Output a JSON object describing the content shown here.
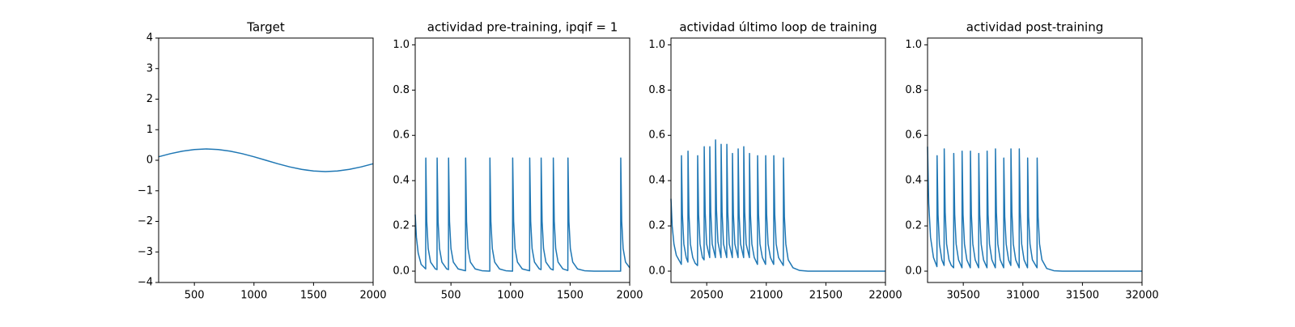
{
  "chart_data": [
    {
      "type": "line",
      "title": "Target",
      "color": "#1f77b4",
      "x": [
        200,
        300,
        400,
        500,
        600,
        700,
        800,
        900,
        1000,
        1100,
        1200,
        1300,
        1400,
        1500,
        1600,
        1700,
        1800,
        1900,
        2000
      ],
      "values": [
        0.114,
        0.217,
        0.299,
        0.352,
        0.37,
        0.352,
        0.299,
        0.217,
        0.114,
        0,
        -0.114,
        -0.217,
        -0.299,
        -0.352,
        -0.37,
        -0.352,
        -0.299,
        -0.217,
        -0.114
      ],
      "xlim": [
        200,
        2000
      ],
      "xticks": [
        500,
        1000,
        1500,
        2000
      ],
      "ylim": [
        -4,
        4
      ],
      "yticks": [
        {
          "value": -4,
          "label": "−4"
        },
        {
          "value": -3,
          "label": "−3"
        },
        {
          "value": -2,
          "label": "−2"
        },
        {
          "value": -1,
          "label": "−1"
        },
        0,
        1,
        2,
        3,
        4
      ]
    },
    {
      "type": "line",
      "title": "actividad pre-training, ipqif = 1",
      "color": "#1f77b4",
      "x": [
        200,
        210,
        225,
        250,
        288,
        289,
        297,
        309,
        329,
        369,
        383,
        384,
        392,
        404,
        424,
        464,
        479,
        480,
        488,
        500,
        520,
        560,
        622,
        623,
        631,
        643,
        663,
        703,
        760,
        826,
        827,
        835,
        847,
        867,
        907,
        960,
        1017,
        1018,
        1026,
        1038,
        1058,
        1098,
        1160,
        1161,
        1169,
        1181,
        1201,
        1241,
        1256,
        1257,
        1265,
        1277,
        1297,
        1337,
        1358,
        1359,
        1367,
        1379,
        1399,
        1439,
        1481,
        1482,
        1490,
        1502,
        1522,
        1562,
        1620,
        1700,
        1924,
        1925,
        1933,
        1945,
        1965,
        2000
      ],
      "values": [
        0.25,
        0.15,
        0.08,
        0.03,
        0.01,
        0.5,
        0.22,
        0.1,
        0.04,
        0.01,
        0.007,
        0.5,
        0.22,
        0.1,
        0.04,
        0.01,
        0.007,
        0.5,
        0.22,
        0.1,
        0.04,
        0.01,
        0.002,
        0.5,
        0.22,
        0.1,
        0.04,
        0.01,
        0.002,
        0,
        0.5,
        0.22,
        0.1,
        0.04,
        0.01,
        0.002,
        0,
        0.5,
        0.22,
        0.1,
        0.04,
        0.01,
        0.002,
        0.5,
        0.22,
        0.1,
        0.04,
        0.01,
        0.007,
        0.5,
        0.22,
        0.1,
        0.04,
        0.01,
        0.005,
        0.5,
        0.22,
        0.1,
        0.04,
        0.01,
        0.003,
        0.5,
        0.22,
        0.1,
        0.04,
        0.01,
        0.002,
        0,
        0,
        0.5,
        0.22,
        0.1,
        0.04,
        0.015
      ],
      "xlim": [
        200,
        2000
      ],
      "xticks": [
        500,
        1000,
        1500,
        2000
      ],
      "ylim": [
        -0.05,
        1.03
      ],
      "yticks": [
        {
          "value": 0,
          "label": "0.0"
        },
        0.2,
        0.4,
        0.6,
        0.8,
        {
          "value": 1,
          "label": "1.0"
        }
      ]
    },
    {
      "type": "line",
      "title": "actividad último loop de training",
      "color": "#1f77b4",
      "x": [
        20200,
        20210,
        20225,
        20245,
        20287,
        20288,
        20296,
        20308,
        20328,
        20342,
        20343,
        20351,
        20363,
        20383,
        20403,
        20423,
        20424,
        20432,
        20444,
        20464,
        20478,
        20479,
        20487,
        20499,
        20525,
        20526,
        20534,
        20546,
        20573,
        20574,
        20582,
        20594,
        20620,
        20621,
        20629,
        20641,
        20668,
        20669,
        20677,
        20689,
        20715,
        20716,
        20724,
        20736,
        20763,
        20764,
        20772,
        20784,
        20810,
        20811,
        20819,
        20831,
        20858,
        20859,
        20867,
        20879,
        20899,
        20926,
        20927,
        20935,
        20947,
        20967,
        20994,
        20995,
        21003,
        21015,
        21035,
        21062,
        21063,
        21071,
        21083,
        21103,
        21143,
        21144,
        21152,
        21164,
        21184,
        21224,
        21280,
        21350,
        22000
      ],
      "values": [
        0.32,
        0.2,
        0.12,
        0.07,
        0.03,
        0.51,
        0.25,
        0.12,
        0.06,
        0.04,
        0.53,
        0.25,
        0.12,
        0.06,
        0.035,
        0.025,
        0.51,
        0.25,
        0.12,
        0.06,
        0.05,
        0.55,
        0.26,
        0.12,
        0.06,
        0.55,
        0.26,
        0.12,
        0.06,
        0.58,
        0.27,
        0.13,
        0.06,
        0.56,
        0.26,
        0.12,
        0.06,
        0.56,
        0.26,
        0.12,
        0.06,
        0.52,
        0.25,
        0.12,
        0.06,
        0.54,
        0.25,
        0.12,
        0.06,
        0.55,
        0.26,
        0.12,
        0.06,
        0.52,
        0.25,
        0.12,
        0.06,
        0.03,
        0.51,
        0.25,
        0.12,
        0.06,
        0.03,
        0.51,
        0.25,
        0.12,
        0.06,
        0.03,
        0.51,
        0.25,
        0.12,
        0.06,
        0.025,
        0.5,
        0.24,
        0.12,
        0.05,
        0.015,
        0.003,
        0,
        0
      ],
      "xlim": [
        20200,
        22000
      ],
      "xticks": [
        20500,
        21000,
        21500,
        22000
      ],
      "ylim": [
        -0.05,
        1.03
      ],
      "yticks": [
        {
          "value": 0,
          "label": "0.0"
        },
        0.2,
        0.4,
        0.6,
        0.8,
        {
          "value": 1,
          "label": "1.0"
        }
      ]
    },
    {
      "type": "line",
      "title": "actividad post-training",
      "color": "#1f77b4",
      "x": [
        30200,
        30210,
        30225,
        30250,
        30279,
        30280,
        30288,
        30300,
        30320,
        30339,
        30340,
        30348,
        30360,
        30380,
        30400,
        30419,
        30420,
        30428,
        30440,
        30460,
        30489,
        30490,
        30498,
        30510,
        30530,
        30559,
        30560,
        30568,
        30580,
        30600,
        30629,
        30630,
        30638,
        30650,
        30670,
        30699,
        30700,
        30708,
        30720,
        30740,
        30769,
        30770,
        30778,
        30790,
        30810,
        30839,
        30840,
        30848,
        30860,
        30880,
        30899,
        30900,
        30908,
        30920,
        30940,
        30969,
        30970,
        30978,
        30990,
        31010,
        31039,
        31040,
        31048,
        31060,
        31080,
        31119,
        31120,
        31128,
        31140,
        31160,
        31200,
        31260,
        31330,
        32000
      ],
      "values": [
        0.55,
        0.3,
        0.15,
        0.06,
        0.02,
        0.51,
        0.25,
        0.12,
        0.05,
        0.025,
        0.54,
        0.26,
        0.12,
        0.05,
        0.025,
        0.015,
        0.52,
        0.25,
        0.12,
        0.05,
        0.015,
        0.53,
        0.25,
        0.12,
        0.05,
        0.015,
        0.53,
        0.25,
        0.12,
        0.05,
        0.015,
        0.52,
        0.25,
        0.12,
        0.05,
        0.015,
        0.53,
        0.25,
        0.12,
        0.05,
        0.015,
        0.54,
        0.26,
        0.12,
        0.05,
        0.015,
        0.5,
        0.24,
        0.12,
        0.05,
        0.025,
        0.54,
        0.26,
        0.12,
        0.05,
        0.015,
        0.54,
        0.26,
        0.12,
        0.05,
        0.015,
        0.5,
        0.24,
        0.12,
        0.05,
        0.015,
        0.5,
        0.24,
        0.12,
        0.05,
        0.012,
        0.002,
        0,
        0
      ],
      "xlim": [
        30200,
        32000
      ],
      "xticks": [
        30500,
        31000,
        31500,
        32000
      ],
      "ylim": [
        -0.05,
        1.03
      ],
      "yticks": [
        {
          "value": 0,
          "label": "0.0"
        },
        0.2,
        0.4,
        0.6,
        0.8,
        {
          "value": 1,
          "label": "1.0"
        }
      ]
    }
  ]
}
